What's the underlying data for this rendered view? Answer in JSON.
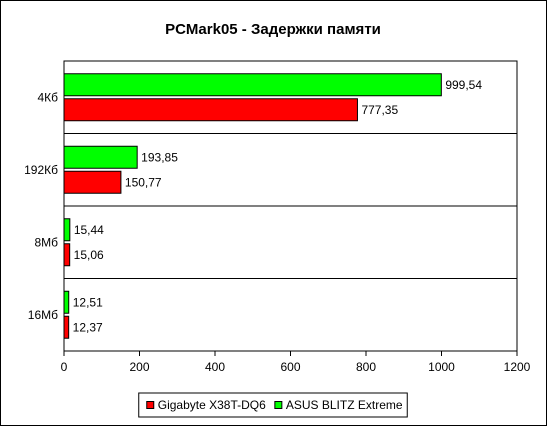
{
  "chart_data": {
    "type": "bar",
    "orientation": "horizontal",
    "title": "PCMark05 - Задержки памяти",
    "categories": [
      "4Кб",
      "192Кб",
      "8Мб",
      "16Мб"
    ],
    "series": [
      {
        "name": "ASUS BLITZ Extreme",
        "color": "#00ff00",
        "values": [
          999.54,
          193.85,
          15.44,
          12.51
        ],
        "labels": [
          "999,54",
          "193,85",
          "15,44",
          "12,51"
        ]
      },
      {
        "name": "Gigabyte X38T-DQ6",
        "color": "#ff0000",
        "values": [
          777.35,
          150.77,
          15.06,
          12.37
        ],
        "labels": [
          "777,35",
          "150,77",
          "15,06",
          "12,37"
        ]
      }
    ],
    "legend_order": [
      "Gigabyte X38T-DQ6",
      "ASUS BLITZ Extreme"
    ],
    "xlim": [
      0,
      1200
    ],
    "xticks": [
      0,
      200,
      400,
      600,
      800,
      1000,
      1200
    ],
    "legend_position": "bottom",
    "grid": "horizontal-separators"
  }
}
